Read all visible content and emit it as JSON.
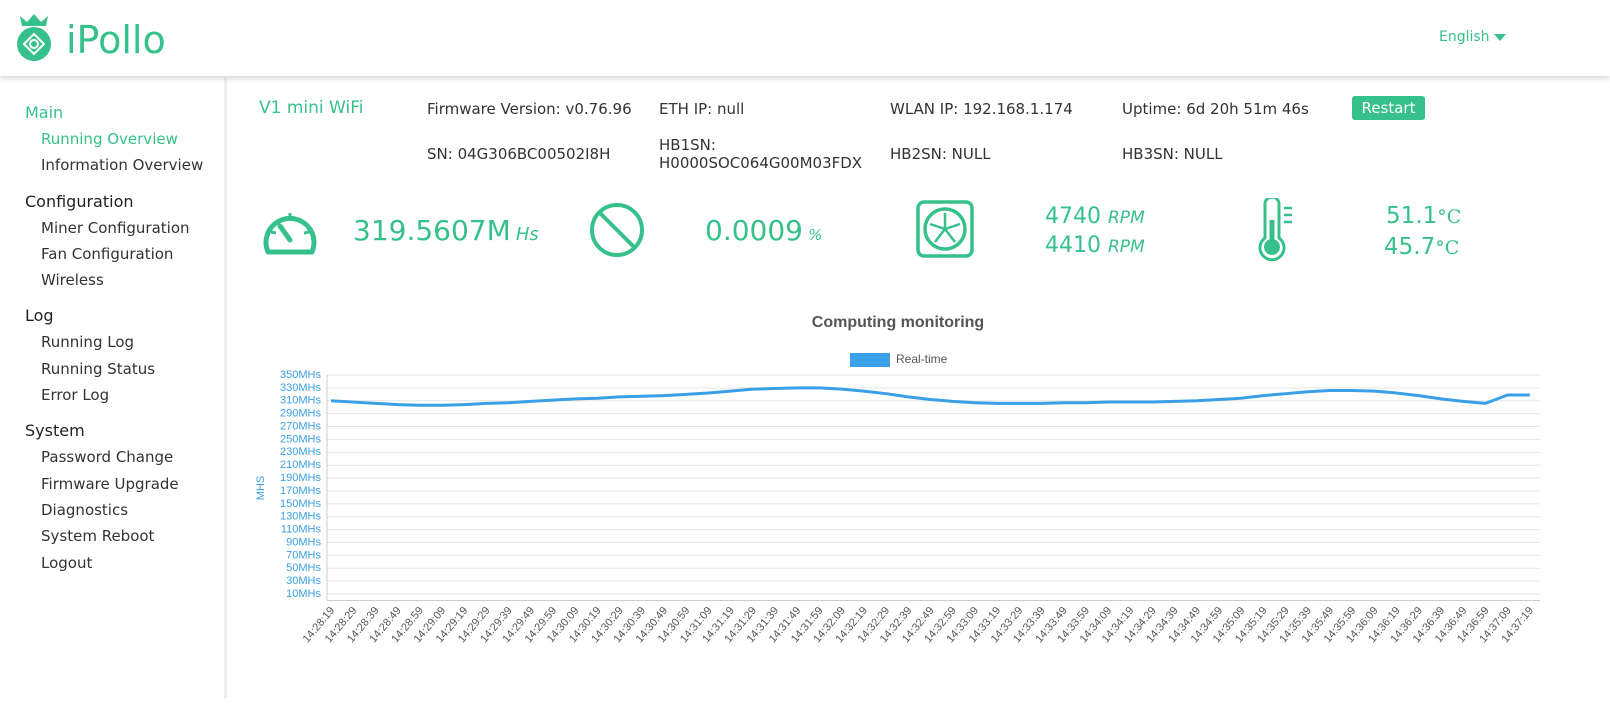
{
  "header": {
    "brand": "iPollo",
    "language": "English"
  },
  "sidebar": {
    "sections": [
      {
        "title": "Main",
        "items": [
          "Running Overview",
          "Information Overview"
        ]
      },
      {
        "title": "Configuration",
        "items": [
          "Miner Configuration",
          "Fan Configuration",
          "Wireless"
        ]
      },
      {
        "title": "Log",
        "items": [
          "Running Log",
          "Running Status",
          "Error Log"
        ]
      },
      {
        "title": "System",
        "items": [
          "Password Change",
          "Firmware Upgrade",
          "Diagnostics",
          "System Reboot",
          "Logout"
        ]
      }
    ]
  },
  "device": {
    "model": "V1 mini WiFi",
    "firmware": "Firmware Version: v0.76.96",
    "eth_ip": "ETH IP: null",
    "wlan_ip": "WLAN IP: 192.168.1.174",
    "uptime": "Uptime: 6d 20h 51m 46s",
    "restart": "Restart",
    "sn": "SN: 04G306BC00502I8H",
    "hb1sn_label": "HB1SN:",
    "hb1sn": "H0000SOC064G00M03FDX",
    "hb2sn": "HB2SN: NULL",
    "hb3sn": "HB3SN: NULL"
  },
  "stats": {
    "hashrate": "319.5607M",
    "hashrate_unit": "Hs",
    "reject": "0.0009",
    "reject_unit": "%",
    "fans": [
      "4740",
      "4410"
    ],
    "fan_unit": "RPM",
    "temps": [
      "51.1",
      "45.7"
    ],
    "temp_unit": "°C"
  },
  "chart_data": {
    "type": "line",
    "title": "Computing monitoring",
    "y_label": "MHS",
    "categories": [
      "14:28:19",
      "14:28:29",
      "14:28:39",
      "14:28:49",
      "14:28:59",
      "14:29:09",
      "14:29:19",
      "14:29:29",
      "14:29:39",
      "14:29:49",
      "14:29:59",
      "14:30:09",
      "14:30:19",
      "14:30:29",
      "14:30:39",
      "14:30:49",
      "14:30:59",
      "14:31:09",
      "14:31:19",
      "14:31:29",
      "14:31:39",
      "14:31:49",
      "14:31:59",
      "14:32:09",
      "14:32:19",
      "14:32:29",
      "14:32:39",
      "14:32:49",
      "14:32:59",
      "14:33:09",
      "14:33:19",
      "14:33:29",
      "14:33:39",
      "14:33:49",
      "14:33:59",
      "14:34:09",
      "14:34:19",
      "14:34:29",
      "14:34:39",
      "14:34:49",
      "14:34:59",
      "14:35:09",
      "14:35:19",
      "14:35:29",
      "14:35:39",
      "14:35:49",
      "14:35:59",
      "14:36:09",
      "14:36:19",
      "14:36:29",
      "14:36:39",
      "14:36:49",
      "14:36:59",
      "14:37:09",
      "14:37:19"
    ],
    "series": [
      {
        "name": "Real-time",
        "color": "#3a9fe6",
        "values": [
          310,
          308,
          306,
          304,
          303,
          303,
          304,
          306,
          307,
          309,
          311,
          313,
          314,
          316,
          317,
          318,
          320,
          322,
          325,
          328,
          329,
          330,
          330,
          328,
          325,
          321,
          316,
          312,
          309,
          307,
          306,
          306,
          306,
          307,
          307,
          308,
          308,
          308,
          309,
          310,
          312,
          314,
          318,
          321,
          324,
          326,
          326,
          325,
          322,
          318,
          313,
          309,
          306,
          319,
          319
        ]
      }
    ],
    "ylim": [
      0,
      350
    ],
    "yticks": [
      {
        "value": 10,
        "label": "10MHs"
      },
      {
        "value": 30,
        "label": "30MHs"
      },
      {
        "value": 50,
        "label": "50MHs"
      },
      {
        "value": 70,
        "label": "70MHs"
      },
      {
        "value": 90,
        "label": "90MHs"
      },
      {
        "value": 110,
        "label": "110MHs"
      },
      {
        "value": 130,
        "label": "130MHs"
      },
      {
        "value": 150,
        "label": "150MHs"
      },
      {
        "value": 170,
        "label": "170MHs"
      },
      {
        "value": 190,
        "label": "190MHs"
      },
      {
        "value": 210,
        "label": "210MHs"
      },
      {
        "value": 230,
        "label": "230MHs"
      },
      {
        "value": 250,
        "label": "250MHs"
      },
      {
        "value": 270,
        "label": "270MHs"
      },
      {
        "value": 290,
        "label": "290MHs"
      },
      {
        "value": 310,
        "label": "310MHs"
      },
      {
        "value": 330,
        "label": "330MHs"
      },
      {
        "value": 350,
        "label": "350MHs"
      }
    ],
    "grid": true
  }
}
